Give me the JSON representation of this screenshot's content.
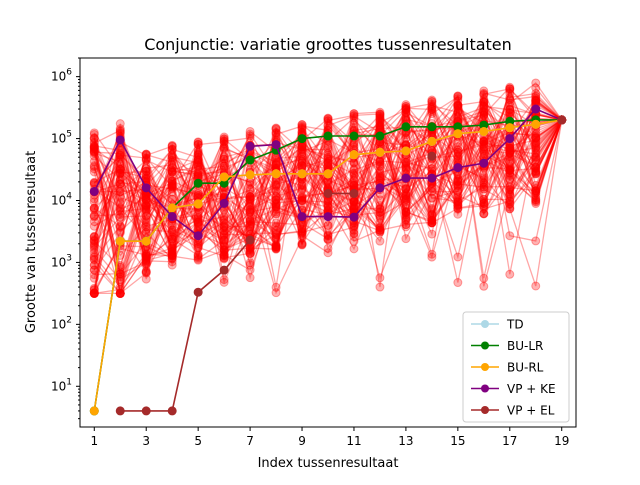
{
  "chart_data": {
    "type": "line",
    "title": "Conjunctie: variatie groottes tussenresultaten",
    "xlabel": "Index tussenresultaat",
    "ylabel": "Grootte van tussenresultaat",
    "x": [
      1,
      2,
      3,
      4,
      5,
      6,
      7,
      8,
      9,
      10,
      11,
      12,
      13,
      14,
      15,
      16,
      17,
      18,
      19
    ],
    "xticks": [
      "1",
      "3",
      "5",
      "7",
      "9",
      "11",
      "13",
      "15",
      "17",
      "19"
    ],
    "xlim": [
      0.45,
      19.55
    ],
    "yscale": "log",
    "ylim": [
      2.2,
      2000000
    ],
    "yticks": [
      {
        "value": 10,
        "mantissa": "10",
        "exp": "1"
      },
      {
        "value": 100,
        "mantissa": "10",
        "exp": "2"
      },
      {
        "value": 1000,
        "mantissa": "10",
        "exp": "3"
      },
      {
        "value": 10000,
        "mantissa": "10",
        "exp": "4"
      },
      {
        "value": 100000,
        "mantissa": "10",
        "exp": "5"
      },
      {
        "value": 1000000,
        "mantissa": "10",
        "exp": "6"
      }
    ],
    "background_color": "#ff0000",
    "background_note_values_end": 200000,
    "legend_position": "lower right",
    "series": [
      {
        "name": "TD",
        "color": "#add8e6",
        "values": [
          4,
          2200,
          2200,
          7600,
          8800,
          24000,
          26000,
          27000,
          27000,
          27000,
          55000,
          60000,
          63000,
          90000,
          120000,
          130000,
          150000,
          170000,
          200000
        ]
      },
      {
        "name": "BU-LR",
        "color": "#008000",
        "values": [
          4,
          2200,
          2200,
          7600,
          19000,
          19000,
          45000,
          65000,
          100000,
          110000,
          110000,
          110000,
          155000,
          155000,
          155000,
          165000,
          190000,
          200000,
          200000
        ]
      },
      {
        "name": "BU-RL",
        "color": "#ffa500",
        "values": [
          4,
          2200,
          2200,
          7600,
          8800,
          24000,
          26000,
          27000,
          27000,
          27000,
          55000,
          60000,
          63000,
          90000,
          120000,
          130000,
          150000,
          170000,
          200000
        ]
      },
      {
        "name": "VP + KE",
        "color": "#800080",
        "values": [
          14000,
          95000,
          16000,
          5500,
          2700,
          9000,
          75000,
          80000,
          5500,
          5500,
          5400,
          16000,
          23000,
          23000,
          34000,
          40000,
          100000,
          300000,
          200000
        ]
      },
      {
        "name": "VP + EL",
        "color": "#a52a2a",
        "values": [
          null,
          4,
          4,
          4,
          330,
          750,
          2300,
          null,
          null,
          13000,
          13000,
          null,
          null,
          52000,
          null,
          null,
          null,
          null,
          200000
        ]
      }
    ]
  }
}
